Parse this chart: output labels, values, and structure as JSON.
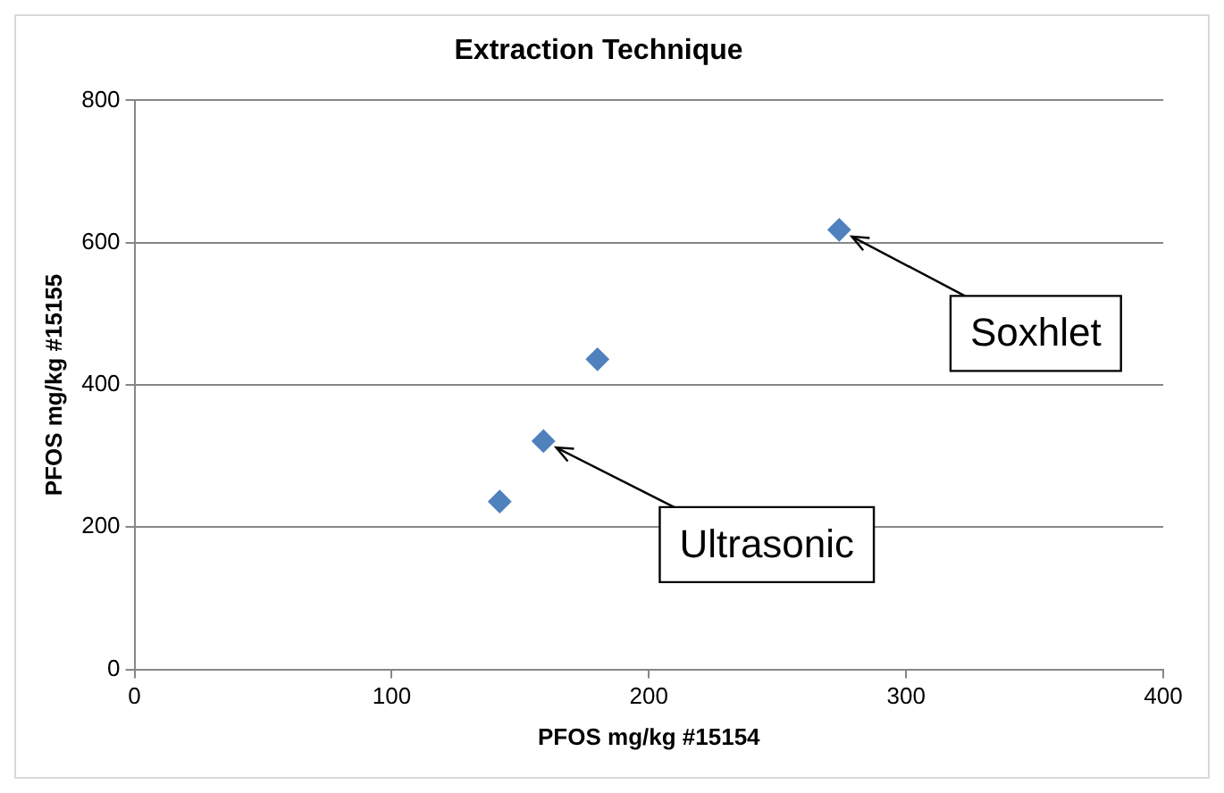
{
  "chart_data": {
    "type": "scatter",
    "title": "Extraction Technique",
    "xlabel": "PFOS mg/kg #15154",
    "ylabel": "PFOS mg/kg #15155",
    "x": [
      142,
      159,
      180,
      274
    ],
    "series": [
      {
        "color": "#4f81bd",
        "values": [
          236,
          321,
          436,
          618
        ]
      }
    ],
    "xlim": [
      0,
      400
    ],
    "xticks": [
      0,
      100,
      200,
      300,
      400
    ],
    "ylim": [
      0,
      800
    ],
    "yticks": [
      0,
      200,
      400,
      600,
      800
    ],
    "grid": "y",
    "legend": false,
    "marker": "diamond",
    "annotations": [
      {
        "text": "Soxhlet",
        "x": 274,
        "y": 618
      },
      {
        "text": "Ultrasonic",
        "x": 159,
        "y": 321
      }
    ]
  }
}
